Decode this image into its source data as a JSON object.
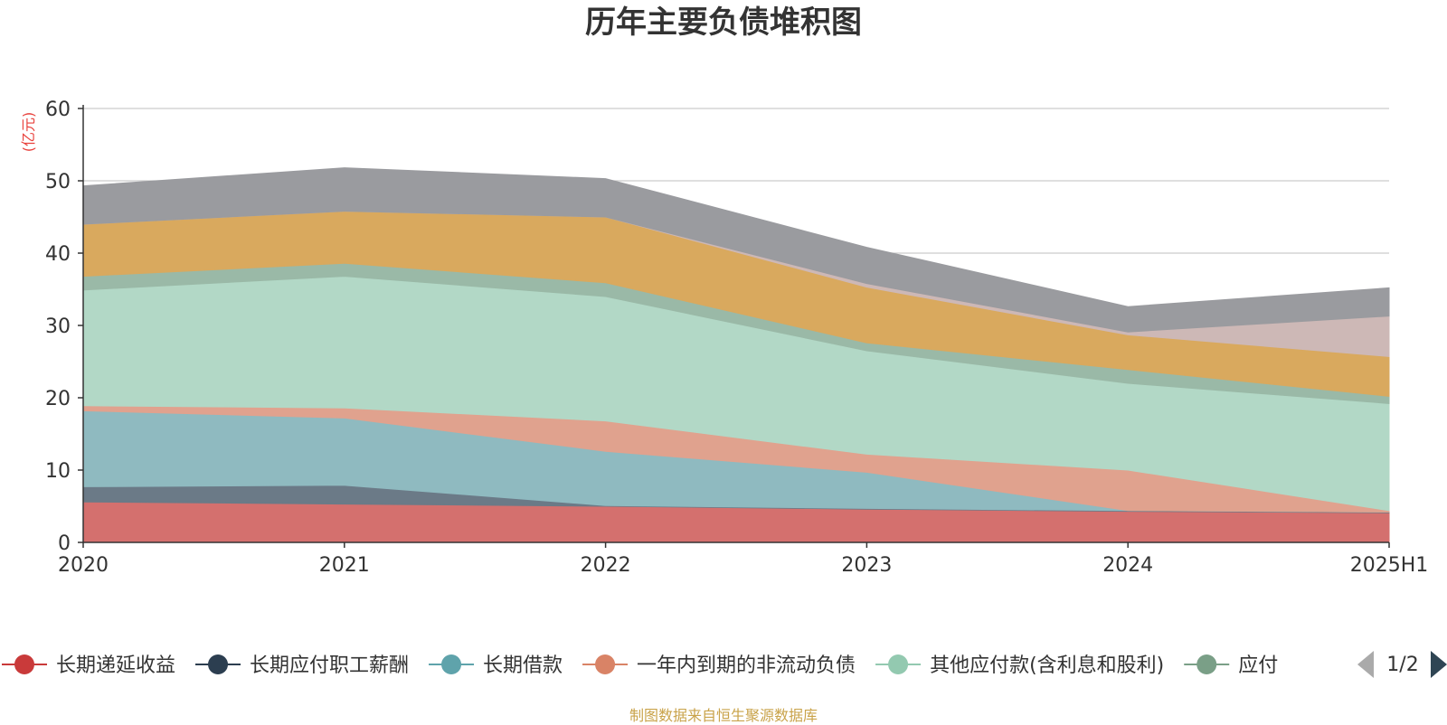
{
  "chart_data": {
    "type": "area",
    "stacked": true,
    "title": "历年主要负债堆积图",
    "ylabel": "(亿元)",
    "ylim": [
      0,
      60
    ],
    "yticks": [
      0,
      10,
      20,
      30,
      40,
      50,
      60
    ],
    "categories": [
      "2020",
      "2021",
      "2022",
      "2023",
      "2024",
      "2025H1"
    ],
    "grid": true,
    "legend_position": "bottom",
    "legend_page": "1/2",
    "series": [
      {
        "name": "长期递延收益",
        "color": "#d4706e",
        "values": [
          5.6,
          5.3,
          5.0,
          4.6,
          4.3,
          4.1
        ]
      },
      {
        "name": "长期应付职工薪酬",
        "color": "#6b7a87",
        "values": [
          2.1,
          2.6,
          0.1,
          0.1,
          0.1,
          0.1
        ]
      },
      {
        "name": "长期借款",
        "color": "#8fbac0",
        "values": [
          10.5,
          9.3,
          7.5,
          5.0,
          0.0,
          0.0
        ]
      },
      {
        "name": "一年内到期的非流动负债",
        "color": "#e0a28e",
        "values": [
          0.7,
          1.4,
          4.2,
          2.5,
          5.6,
          0.2
        ]
      },
      {
        "name": "其他应付款(含利息和股利)",
        "color": "#b2d8c6",
        "values": [
          16.0,
          18.2,
          17.2,
          14.3,
          12.0,
          14.8
        ]
      },
      {
        "name": "应付",
        "color": "#9ab9a7",
        "values": [
          1.9,
          1.8,
          1.9,
          1.1,
          1.9,
          1.0
        ]
      },
      {
        "name": "",
        "color": "#d9a95e",
        "values": [
          7.2,
          7.2,
          9.1,
          7.7,
          4.8,
          5.5
        ]
      },
      {
        "name": "",
        "color": "#cdb8b6",
        "values": [
          0.0,
          0.0,
          0.0,
          0.5,
          0.4,
          5.6
        ]
      },
      {
        "name": "",
        "color": "#9a9b9f",
        "values": [
          5.3,
          6.0,
          5.3,
          5.0,
          3.5,
          3.9
        ]
      }
    ]
  },
  "footer": "制图数据来自恒生聚源数据库"
}
